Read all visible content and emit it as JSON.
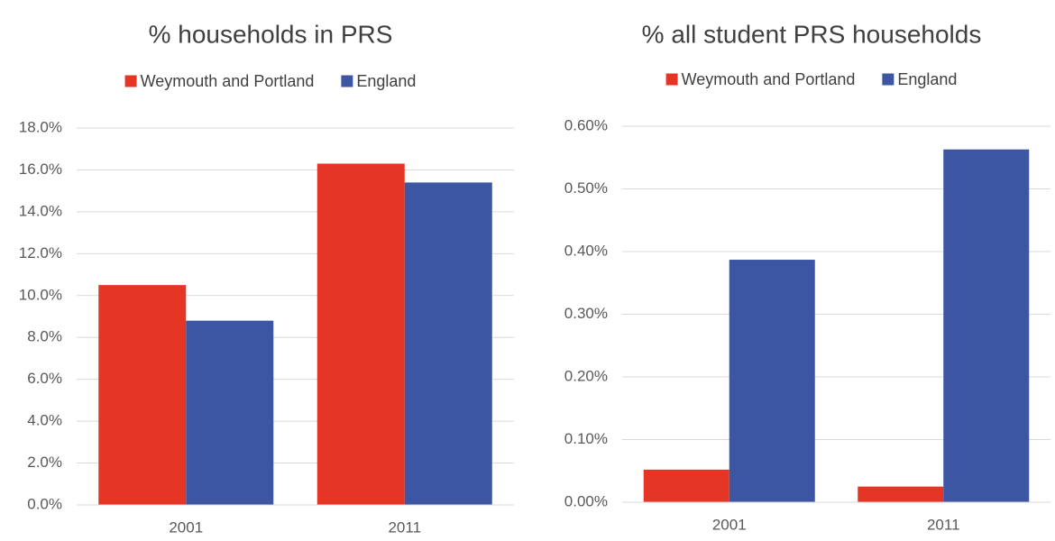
{
  "chart_data": [
    {
      "type": "bar",
      "title": "% households in PRS",
      "categories": [
        "2001",
        "2011"
      ],
      "series": [
        {
          "name": "Weymouth and Portland",
          "color": "#e53524",
          "values": [
            10.5,
            16.3
          ]
        },
        {
          "name": "England",
          "color": "#3c56a4",
          "values": [
            8.8,
            15.4
          ]
        }
      ],
      "ylim": [
        0,
        18
      ],
      "yticks": [
        {
          "value": 0,
          "label": "0.0%"
        },
        {
          "value": 2,
          "label": "2.0%"
        },
        {
          "value": 4,
          "label": "4.0%"
        },
        {
          "value": 6,
          "label": "6.0%"
        },
        {
          "value": 8,
          "label": "8.0%"
        },
        {
          "value": 10,
          "label": "10.0%"
        },
        {
          "value": 12,
          "label": "12.0%"
        },
        {
          "value": 14,
          "label": "14.0%"
        },
        {
          "value": 16,
          "label": "16.0%"
        },
        {
          "value": 18,
          "label": "18.0%"
        }
      ],
      "grid": true,
      "legend": "top"
    },
    {
      "type": "bar",
      "title": "% all student PRS households",
      "categories": [
        "2001",
        "2011"
      ],
      "series": [
        {
          "name": "Weymouth and Portland",
          "color": "#e53524",
          "values": [
            0.052,
            0.025
          ]
        },
        {
          "name": "England",
          "color": "#3c56a4",
          "values": [
            0.387,
            0.563
          ]
        }
      ],
      "ylim": [
        0,
        0.6
      ],
      "yticks": [
        {
          "value": 0,
          "label": "0.00%"
        },
        {
          "value": 0.1,
          "label": "0.10%"
        },
        {
          "value": 0.2,
          "label": "0.20%"
        },
        {
          "value": 0.3,
          "label": "0.30%"
        },
        {
          "value": 0.4,
          "label": "0.40%"
        },
        {
          "value": 0.5,
          "label": "0.50%"
        },
        {
          "value": 0.6,
          "label": "0.60%"
        }
      ],
      "grid": true,
      "legend": "top"
    }
  ]
}
